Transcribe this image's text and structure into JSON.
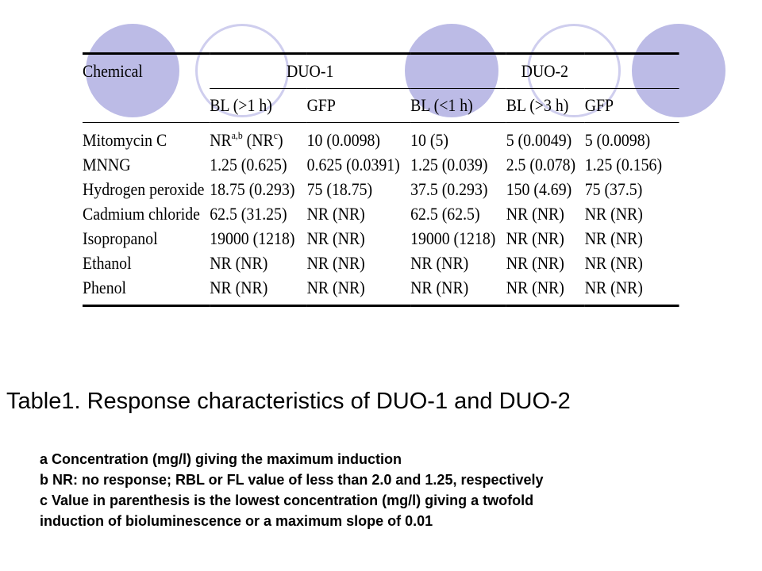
{
  "decor": {
    "circle_color": "#bcbbe6",
    "circle_outline_color": "#cfceee"
  },
  "table": {
    "corner_label": "Chemical",
    "group_headers": [
      "DUO-1",
      "DUO-2"
    ],
    "sub_headers": [
      "BL (>1 h)",
      "GFP",
      "BL (<1 h)",
      "BL (>3 h)",
      "GFP"
    ],
    "rows": [
      {
        "chemical": "Mitomycin C",
        "cell1_text": "NR",
        "cell1_sup": "a,b",
        "cell1_mid": " (NR",
        "cell1_sup2": "c",
        "cell1_end": ")",
        "cells": [
          "10 (0.0098)",
          "10 (5)",
          "5 (0.0049)",
          "5 (0.0098)"
        ]
      },
      {
        "chemical": "MNNG",
        "cells": [
          "1.25 (0.625)",
          "0.625 (0.0391)",
          "1.25 (0.039)",
          "2.5 (0.078)",
          "1.25 (0.156)"
        ]
      },
      {
        "chemical": "Hydrogen peroxide",
        "cells": [
          "18.75 (0.293)",
          "75 (18.75)",
          "37.5 (0.293)",
          "150 (4.69)",
          "75 (37.5)"
        ]
      },
      {
        "chemical": "Cadmium chloride",
        "cells": [
          "62.5 (31.25)",
          "NR (NR)",
          "62.5 (62.5)",
          "NR (NR)",
          "NR (NR)"
        ]
      },
      {
        "chemical": "Isopropanol",
        "cells": [
          "19000 (1218)",
          "NR (NR)",
          "19000 (1218)",
          "NR (NR)",
          "NR (NR)"
        ]
      },
      {
        "chemical": "Ethanol",
        "cells": [
          "NR (NR)",
          "NR (NR)",
          "NR (NR)",
          "NR (NR)",
          "NR (NR)"
        ]
      },
      {
        "chemical": "Phenol",
        "cells": [
          "NR (NR)",
          "NR (NR)",
          "NR (NR)",
          "NR (NR)",
          "NR (NR)"
        ]
      }
    ]
  },
  "caption": "Table1. Response characteristics of DUO-1 and DUO-2",
  "notes": [
    "a Concentration (mg/l) giving the maximum induction",
    "b NR: no response; RBL or FL value of less than 2.0 and 1.25, respectively",
    "c Value in parenthesis is the lowest concentration (mg/l) giving a twofold",
    "induction of bioluminescence or a maximum slope of 0.01"
  ]
}
